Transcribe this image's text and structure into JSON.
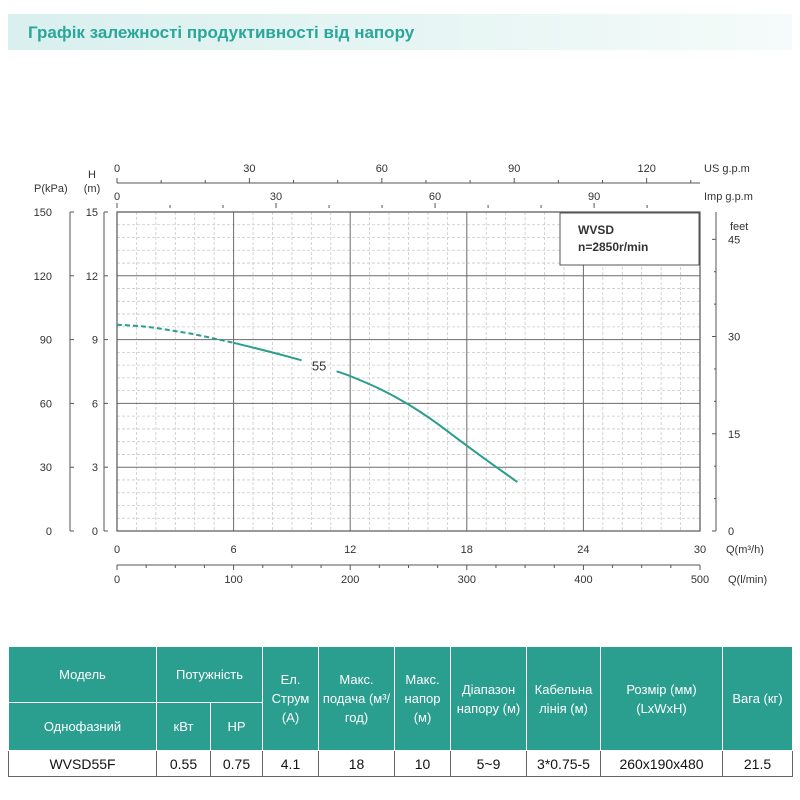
{
  "title": "Графік залежності продуктивності від напору",
  "chart_data": {
    "type": "line",
    "model_label": "WVSD",
    "speed_label": "n=2850r/min",
    "curve_label": "55",
    "left_axis_p": {
      "label_line1": "P(kPa)",
      "ticks": [
        0,
        30,
        60,
        90,
        120,
        150
      ],
      "range": [
        0,
        150
      ]
    },
    "left_axis_h": {
      "label_line1": "H",
      "label_line2": "(m)",
      "ticks": [
        0,
        3,
        6,
        9,
        12,
        15
      ],
      "range": [
        0,
        15
      ]
    },
    "right_axis_feet": {
      "label": "feet",
      "ticks": [
        0,
        15,
        30,
        45
      ]
    },
    "bottom_axis_q_m3h": {
      "label": "Q(m³/h)",
      "ticks": [
        0,
        6,
        12,
        18,
        24,
        30
      ],
      "range": [
        0,
        30
      ]
    },
    "bottom_axis_q_lmin": {
      "label": "Q(l/min)",
      "ticks": [
        0,
        100,
        200,
        300,
        400,
        500
      ],
      "range": [
        0,
        500
      ]
    },
    "top_axis_us_gpm": {
      "label": "US g.p.m",
      "ticks": [
        0,
        30,
        60,
        90,
        120
      ]
    },
    "top_axis_imp_gpm": {
      "label": "Imp g.p.m",
      "ticks": [
        0,
        30,
        60,
        90
      ]
    },
    "series": [
      {
        "name": "55",
        "color": "#2a9e8f",
        "dashed_segment": {
          "x": [
            0,
            1,
            2,
            3,
            4,
            5,
            6
          ],
          "y": [
            9.7,
            9.65,
            9.55,
            9.4,
            9.25,
            9.05,
            8.85
          ]
        },
        "solid_segment": {
          "x": [
            6,
            8,
            10,
            12,
            14,
            16,
            18,
            20.6
          ],
          "y": [
            8.85,
            8.4,
            7.9,
            7.3,
            6.5,
            5.4,
            4.0,
            2.3
          ]
        }
      }
    ],
    "grid": true
  },
  "table": {
    "headers": {
      "model": "Модель",
      "power": "Потужність",
      "current": "Ел. Струм (А)",
      "max_flow": "Макс. подача (м³/год)",
      "max_head": "Макс. напор (м)",
      "head_range": "Діапазон напору (м)",
      "cable": "Кабельна лінія (м)",
      "size": "Розмір (мм) (LxWxH)",
      "weight": "Вага (кг)",
      "single_phase": "Однофазний",
      "kw": "кВт",
      "hp": "HP"
    },
    "row": {
      "model": "WVSD55F",
      "kw": "0.55",
      "hp": "0.75",
      "current": "4.1",
      "max_flow": "18",
      "max_head": "10",
      "head_range": "5~9",
      "cable": "3*0.75-5",
      "size": "260x190x480",
      "weight": "21.5"
    }
  },
  "colors": {
    "accent": "#2a9e8f",
    "title": "#2aa69a"
  }
}
